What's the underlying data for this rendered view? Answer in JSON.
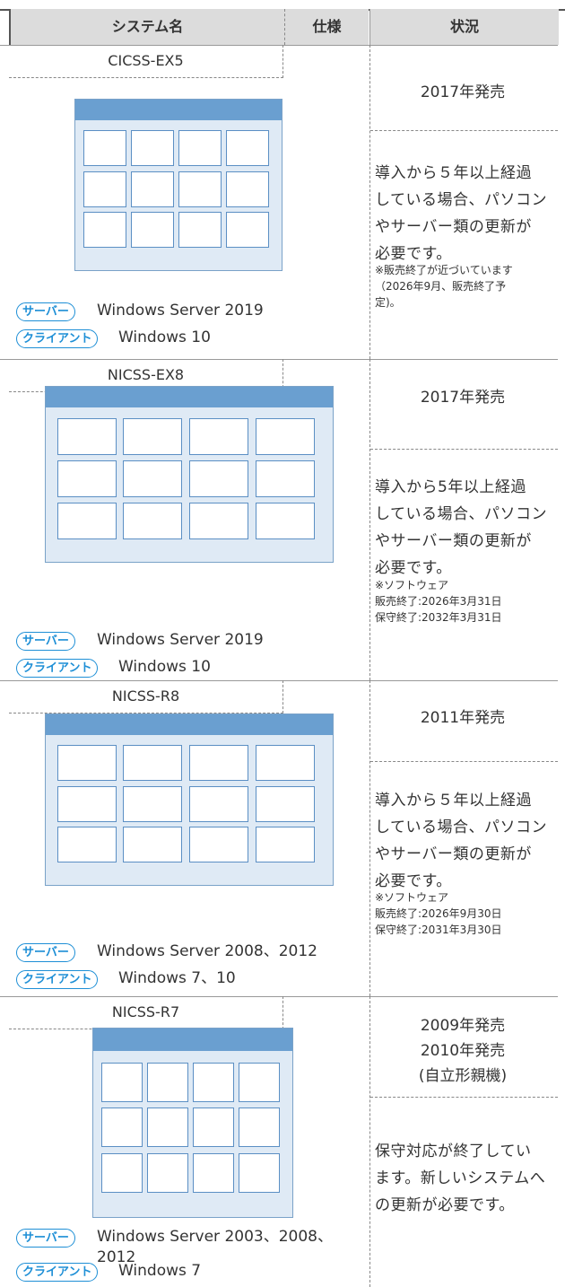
{
  "header": {
    "columns": [
      "システム名",
      "仕様",
      "状況"
    ]
  },
  "rows": [
    {
      "name": "CICSS-EX5",
      "server_label": "サーバー",
      "server": "Windows Server 2019",
      "client_label": "クライアント",
      "client": "Windows 10",
      "release": [
        "2017年発売"
      ],
      "status": [
        "導入から５年以上経過",
        "している場合、パソコン",
        "やサーバー類の更新が",
        "必要です。"
      ],
      "note": [
        "※販売終了が近づいています",
        "（2026年9月、販売終了予",
        "定)。"
      ]
    },
    {
      "name": "NICSS-EX8",
      "server_label": "サーバー",
      "server": "Windows Server 2019",
      "client_label": "クライアント",
      "client": "Windows 10",
      "release": [
        "2017年発売"
      ],
      "status": [
        "導入から5年以上経過",
        "している場合、パソコン",
        "やサーバー類の更新が",
        "必要です。"
      ],
      "note": [
        "※ソフトウェア",
        "販売終了:2026年3月31日",
        "保守終了:2032年3月31日"
      ]
    },
    {
      "name": "NICSS-R8",
      "server_label": "サーバー",
      "server": "Windows Server 2008、2012",
      "client_label": "クライアント",
      "client": "Windows 7、10",
      "release": [
        "2011年発売"
      ],
      "status": [
        "導入から５年以上経過",
        "している場合、パソコン",
        "やサーバー類の更新が",
        "必要です。"
      ],
      "note": [
        "※ソフトウェア",
        "販売終了:2026年9月30日",
        "保守終了:2031年3月30日"
      ]
    },
    {
      "name": "NICSS-R7",
      "server_label": "サーバー",
      "server": "Windows Server 2003、2008、2012",
      "client_label": "クライアント",
      "client": "Windows 7",
      "release": [
        "2009年発売",
        "2010年発売",
        "(自立形親機)"
      ],
      "status": [
        "保守対応が終了してい",
        "ます。新しいシステムへ",
        "の更新が必要です。"
      ],
      "note": []
    }
  ]
}
